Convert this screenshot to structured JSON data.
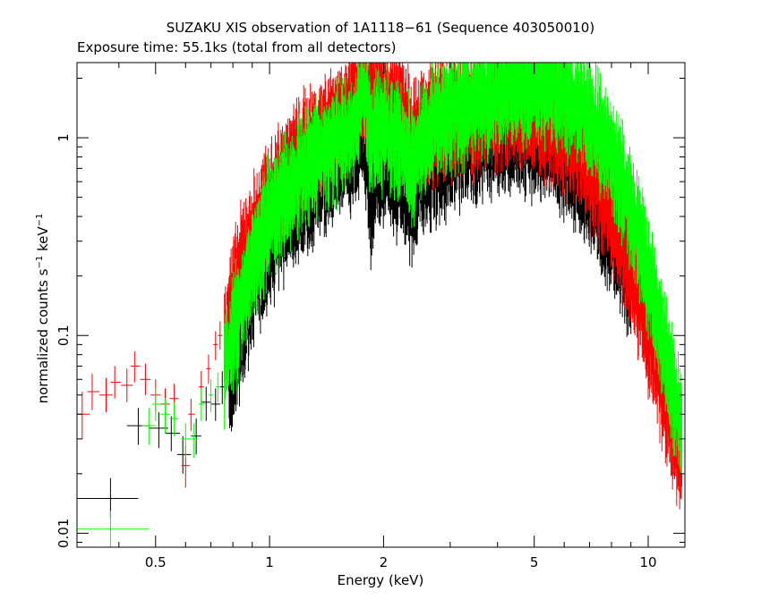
{
  "chart_data": {
    "type": "scatter",
    "title": "SUZAKU XIS observation of 1A1118−61 (Sequence 403050010)",
    "subtitle": "Exposure time: 55.1ks (total from all detectors)",
    "xlabel": "Energy (keV)",
    "ylabel": {
      "base": "normalized counts s",
      "exp1": "−1",
      "mid": " keV",
      "exp2": "−1"
    },
    "xscale": "log",
    "yscale": "log",
    "xlim": [
      0.31,
      12.5
    ],
    "ylim": [
      0.0085,
      2.4
    ],
    "xticks": [
      {
        "value": 0.5,
        "label": "0.5"
      },
      {
        "value": 1,
        "label": "1"
      },
      {
        "value": 2,
        "label": "2"
      },
      {
        "value": 5,
        "label": "5"
      },
      {
        "value": 10,
        "label": "10"
      }
    ],
    "yticks": [
      {
        "value": 0.01,
        "label": "0.01"
      },
      {
        "value": 0.1,
        "label": "0.1"
      },
      {
        "value": 1,
        "label": "1"
      }
    ],
    "series": [
      {
        "color": "#000000",
        "points": [
          {
            "x": 0.38,
            "y": 0.015,
            "xerr": [
              0.31,
              0.45
            ],
            "yerr": [
              0.012,
              0.019
            ]
          },
          {
            "x": 0.45,
            "y": 0.035,
            "xerr": [
              0.42,
              0.48
            ],
            "yerr": [
              0.028,
              0.043
            ]
          },
          {
            "x": 0.51,
            "y": 0.034,
            "xerr": [
              0.48,
              0.54
            ],
            "yerr": [
              0.027,
              0.041
            ]
          },
          {
            "x": 0.55,
            "y": 0.032,
            "xerr": [
              0.53,
              0.58
            ],
            "yerr": [
              0.026,
              0.039
            ]
          },
          {
            "x": 0.59,
            "y": 0.025,
            "xerr": [
              0.57,
              0.62
            ],
            "yerr": [
              0.02,
              0.031
            ]
          },
          {
            "x": 0.64,
            "y": 0.031,
            "xerr": [
              0.62,
              0.66
            ],
            "yerr": [
              0.025,
              0.038
            ]
          },
          {
            "x": 0.68,
            "y": 0.046,
            "xerr": [
              0.66,
              0.7
            ],
            "yerr": [
              0.037,
              0.055
            ]
          },
          {
            "x": 0.72,
            "y": 0.045,
            "xerr": [
              0.7,
              0.74
            ],
            "yerr": [
              0.037,
              0.054
            ]
          },
          {
            "x": 0.75,
            "y": 0.055,
            "xerr": [
              0.74,
              0.77
            ],
            "yerr": [
              0.045,
              0.066
            ]
          }
        ],
        "curve": [
          [
            0.78,
            0.06
          ],
          [
            0.82,
            0.09
          ],
          [
            0.86,
            0.13
          ],
          [
            0.9,
            0.18
          ],
          [
            0.95,
            0.24
          ],
          [
            1.0,
            0.3
          ],
          [
            1.1,
            0.42
          ],
          [
            1.2,
            0.52
          ],
          [
            1.3,
            0.62
          ],
          [
            1.4,
            0.72
          ],
          [
            1.5,
            0.8
          ],
          [
            1.6,
            0.9
          ],
          [
            1.7,
            1.0
          ],
          [
            1.75,
            1.2
          ],
          [
            1.8,
            0.85
          ],
          [
            1.85,
            0.5
          ],
          [
            1.9,
            0.72
          ],
          [
            2.0,
            0.78
          ],
          [
            2.1,
            0.72
          ],
          [
            2.2,
            0.65
          ],
          [
            2.3,
            0.55
          ],
          [
            2.4,
            0.5
          ],
          [
            2.5,
            0.65
          ],
          [
            2.7,
            0.78
          ],
          [
            3.0,
            0.88
          ],
          [
            3.5,
            1.0
          ],
          [
            4.0,
            1.1
          ],
          [
            4.5,
            1.12
          ],
          [
            5.0,
            1.05
          ],
          [
            5.5,
            0.95
          ],
          [
            6.0,
            0.82
          ],
          [
            6.5,
            0.7
          ],
          [
            7.0,
            0.55
          ],
          [
            7.5,
            0.44
          ],
          [
            8.0,
            0.35
          ],
          [
            8.5,
            0.27
          ],
          [
            9.0,
            0.19
          ]
        ],
        "noise": 0.22
      },
      {
        "color": "#ff0000",
        "points": [
          {
            "x": 0.32,
            "y": 0.04,
            "xerr": [
              0.31,
              0.335
            ],
            "yerr": [
              0.03,
              0.052
            ]
          },
          {
            "x": 0.34,
            "y": 0.052,
            "xerr": [
              0.33,
              0.355
            ],
            "yerr": [
              0.042,
              0.064
            ]
          },
          {
            "x": 0.37,
            "y": 0.05,
            "xerr": [
              0.355,
              0.385
            ],
            "yerr": [
              0.041,
              0.061
            ]
          },
          {
            "x": 0.39,
            "y": 0.058,
            "xerr": [
              0.38,
              0.405
            ],
            "yerr": [
              0.048,
              0.07
            ]
          },
          {
            "x": 0.42,
            "y": 0.056,
            "xerr": [
              0.405,
              0.435
            ],
            "yerr": [
              0.046,
              0.068
            ]
          },
          {
            "x": 0.44,
            "y": 0.07,
            "xerr": [
              0.43,
              0.455
            ],
            "yerr": [
              0.058,
              0.083
            ]
          },
          {
            "x": 0.47,
            "y": 0.06,
            "xerr": [
              0.455,
              0.485
            ],
            "yerr": [
              0.05,
              0.072
            ]
          },
          {
            "x": 0.5,
            "y": 0.05,
            "xerr": [
              0.485,
              0.515
            ],
            "yerr": [
              0.041,
              0.06
            ]
          },
          {
            "x": 0.53,
            "y": 0.045,
            "xerr": [
              0.515,
              0.545
            ],
            "yerr": [
              0.037,
              0.054
            ]
          },
          {
            "x": 0.56,
            "y": 0.048,
            "xerr": [
              0.545,
              0.575
            ],
            "yerr": [
              0.04,
              0.057
            ]
          },
          {
            "x": 0.6,
            "y": 0.022,
            "xerr": [
              0.585,
              0.615
            ],
            "yerr": [
              0.017,
              0.028
            ]
          },
          {
            "x": 0.62,
            "y": 0.04,
            "xerr": [
              0.61,
              0.635
            ],
            "yerr": [
              0.033,
              0.048
            ]
          },
          {
            "x": 0.66,
            "y": 0.055,
            "xerr": [
              0.65,
              0.67
            ],
            "yerr": [
              0.045,
              0.066
            ]
          },
          {
            "x": 0.69,
            "y": 0.068,
            "xerr": [
              0.68,
              0.7
            ],
            "yerr": [
              0.057,
              0.08
            ]
          },
          {
            "x": 0.72,
            "y": 0.09,
            "xerr": [
              0.71,
              0.73
            ],
            "yerr": [
              0.075,
              0.105
            ]
          },
          {
            "x": 0.74,
            "y": 0.1,
            "xerr": [
              0.73,
              0.75
            ],
            "yerr": [
              0.085,
              0.118
            ]
          }
        ],
        "curve": [
          [
            0.76,
            0.1
          ],
          [
            0.8,
            0.15
          ],
          [
            0.84,
            0.22
          ],
          [
            0.88,
            0.28
          ],
          [
            0.92,
            0.34
          ],
          [
            0.96,
            0.4
          ],
          [
            1.0,
            0.5
          ],
          [
            1.1,
            0.65
          ],
          [
            1.2,
            0.8
          ],
          [
            1.3,
            0.95
          ],
          [
            1.4,
            1.1
          ],
          [
            1.5,
            1.2
          ],
          [
            1.6,
            1.3
          ],
          [
            1.7,
            1.55
          ],
          [
            1.75,
            1.8
          ],
          [
            1.8,
            1.55
          ],
          [
            1.9,
            1.6
          ],
          [
            2.0,
            1.55
          ],
          [
            2.1,
            1.5
          ],
          [
            2.2,
            1.45
          ],
          [
            2.3,
            1.25
          ],
          [
            2.4,
            1.05
          ],
          [
            2.5,
            1.1
          ],
          [
            2.7,
            1.18
          ],
          [
            3.0,
            1.25
          ],
          [
            3.5,
            1.3
          ],
          [
            4.0,
            1.35
          ],
          [
            4.5,
            1.38
          ],
          [
            5.0,
            1.3
          ],
          [
            5.5,
            1.2
          ],
          [
            6.0,
            1.05
          ],
          [
            6.5,
            0.88
          ],
          [
            7.0,
            0.7
          ],
          [
            7.5,
            0.55
          ],
          [
            8.0,
            0.42
          ],
          [
            8.5,
            0.3
          ],
          [
            9.0,
            0.21
          ],
          [
            9.5,
            0.15
          ],
          [
            10.0,
            0.1
          ],
          [
            10.5,
            0.07
          ],
          [
            11.0,
            0.05
          ],
          [
            11.5,
            0.038
          ],
          [
            12.0,
            0.028
          ],
          [
            12.3,
            0.022
          ]
        ],
        "noise": 0.2
      },
      {
        "color": "#00ff00",
        "points": [
          {
            "x": 0.38,
            "y": 0.0105,
            "xerr": [
              0.31,
              0.48
            ],
            "yerr": [
              0.0085,
              0.013
            ]
          },
          {
            "x": 0.48,
            "y": 0.035,
            "xerr": [
              0.46,
              0.5
            ],
            "yerr": [
              0.028,
              0.043
            ]
          },
          {
            "x": 0.5,
            "y": 0.045,
            "xerr": [
              0.49,
              0.515
            ],
            "yerr": [
              0.037,
              0.054
            ]
          },
          {
            "x": 0.53,
            "y": 0.04,
            "xerr": [
              0.515,
              0.545
            ],
            "yerr": [
              0.032,
              0.048
            ]
          },
          {
            "x": 0.56,
            "y": 0.038,
            "xerr": [
              0.545,
              0.575
            ],
            "yerr": [
              0.031,
              0.046
            ]
          },
          {
            "x": 0.6,
            "y": 0.03,
            "xerr": [
              0.585,
              0.615
            ],
            "yerr": [
              0.024,
              0.036
            ]
          },
          {
            "x": 0.63,
            "y": 0.03,
            "xerr": [
              0.615,
              0.645
            ],
            "yerr": [
              0.024,
              0.036
            ]
          },
          {
            "x": 0.66,
            "y": 0.045,
            "xerr": [
              0.65,
              0.675
            ],
            "yerr": [
              0.037,
              0.054
            ]
          },
          {
            "x": 0.7,
            "y": 0.05,
            "xerr": [
              0.69,
              0.71
            ],
            "yerr": [
              0.041,
              0.06
            ]
          },
          {
            "x": 0.73,
            "y": 0.055,
            "xerr": [
              0.72,
              0.74
            ],
            "yerr": [
              0.046,
              0.065
            ]
          }
        ],
        "curve": [
          [
            0.76,
            0.07
          ],
          [
            0.8,
            0.1
          ],
          [
            0.84,
            0.14
          ],
          [
            0.88,
            0.2
          ],
          [
            0.92,
            0.26
          ],
          [
            0.96,
            0.32
          ],
          [
            1.0,
            0.4
          ],
          [
            1.1,
            0.52
          ],
          [
            1.2,
            0.64
          ],
          [
            1.3,
            0.75
          ],
          [
            1.4,
            0.85
          ],
          [
            1.5,
            0.95
          ],
          [
            1.6,
            1.05
          ],
          [
            1.7,
            1.15
          ],
          [
            1.75,
            1.9
          ],
          [
            1.8,
            1.45
          ],
          [
            1.85,
            0.9
          ],
          [
            1.9,
            1.05
          ],
          [
            2.0,
            1.1
          ],
          [
            2.1,
            1.0
          ],
          [
            2.2,
            0.95
          ],
          [
            2.3,
            0.82
          ],
          [
            2.4,
            0.72
          ],
          [
            2.5,
            0.9
          ],
          [
            2.7,
            1.15
          ],
          [
            3.0,
            1.35
          ],
          [
            3.5,
            1.55
          ],
          [
            4.0,
            1.7
          ],
          [
            4.5,
            1.8
          ],
          [
            5.0,
            1.82
          ],
          [
            5.5,
            1.78
          ],
          [
            6.0,
            1.65
          ],
          [
            6.5,
            1.5
          ],
          [
            7.0,
            1.28
          ],
          [
            7.5,
            1.05
          ],
          [
            8.0,
            0.82
          ],
          [
            8.5,
            0.6
          ],
          [
            9.0,
            0.42
          ],
          [
            9.5,
            0.3
          ],
          [
            10.0,
            0.2
          ],
          [
            10.5,
            0.13
          ],
          [
            11.0,
            0.085
          ],
          [
            11.5,
            0.058
          ],
          [
            12.0,
            0.04
          ],
          [
            12.3,
            0.032
          ]
        ],
        "noise": 0.2
      }
    ]
  }
}
